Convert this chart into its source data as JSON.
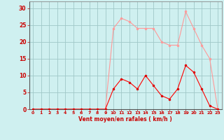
{
  "x": [
    0,
    1,
    2,
    3,
    4,
    5,
    6,
    7,
    8,
    9,
    10,
    11,
    12,
    13,
    14,
    15,
    16,
    17,
    18,
    19,
    20,
    21,
    22,
    23
  ],
  "rafales": [
    0,
    0,
    0,
    0,
    0,
    0,
    0,
    0,
    0,
    0,
    24,
    27,
    26,
    24,
    24,
    24,
    20,
    19,
    19,
    29,
    24,
    19,
    15,
    0
  ],
  "moyen": [
    0,
    0,
    0,
    0,
    0,
    0,
    0,
    0,
    0,
    0,
    6,
    9,
    8,
    6,
    10,
    7,
    4,
    3,
    6,
    13,
    11,
    6,
    1,
    0
  ],
  "bg_color": "#cff0f0",
  "grid_color": "#a0c8c8",
  "line_color_rafales": "#ff9999",
  "line_color_moyen": "#ff0000",
  "marker_color_rafales": "#ff9999",
  "marker_color_moyen": "#dd0000",
  "xlabel": "Vent moyen/en rafales ( km/h )",
  "xlabel_color": "#cc0000",
  "tick_color": "#cc0000",
  "spine_color": "#888888",
  "ylim": [
    0,
    32
  ],
  "yticks": [
    0,
    5,
    10,
    15,
    20,
    25,
    30
  ],
  "xlim": [
    -0.5,
    23.5
  ],
  "xticks": [
    0,
    1,
    2,
    3,
    4,
    5,
    6,
    7,
    8,
    9,
    10,
    11,
    12,
    13,
    14,
    15,
    16,
    17,
    18,
    19,
    20,
    21,
    22,
    23
  ]
}
